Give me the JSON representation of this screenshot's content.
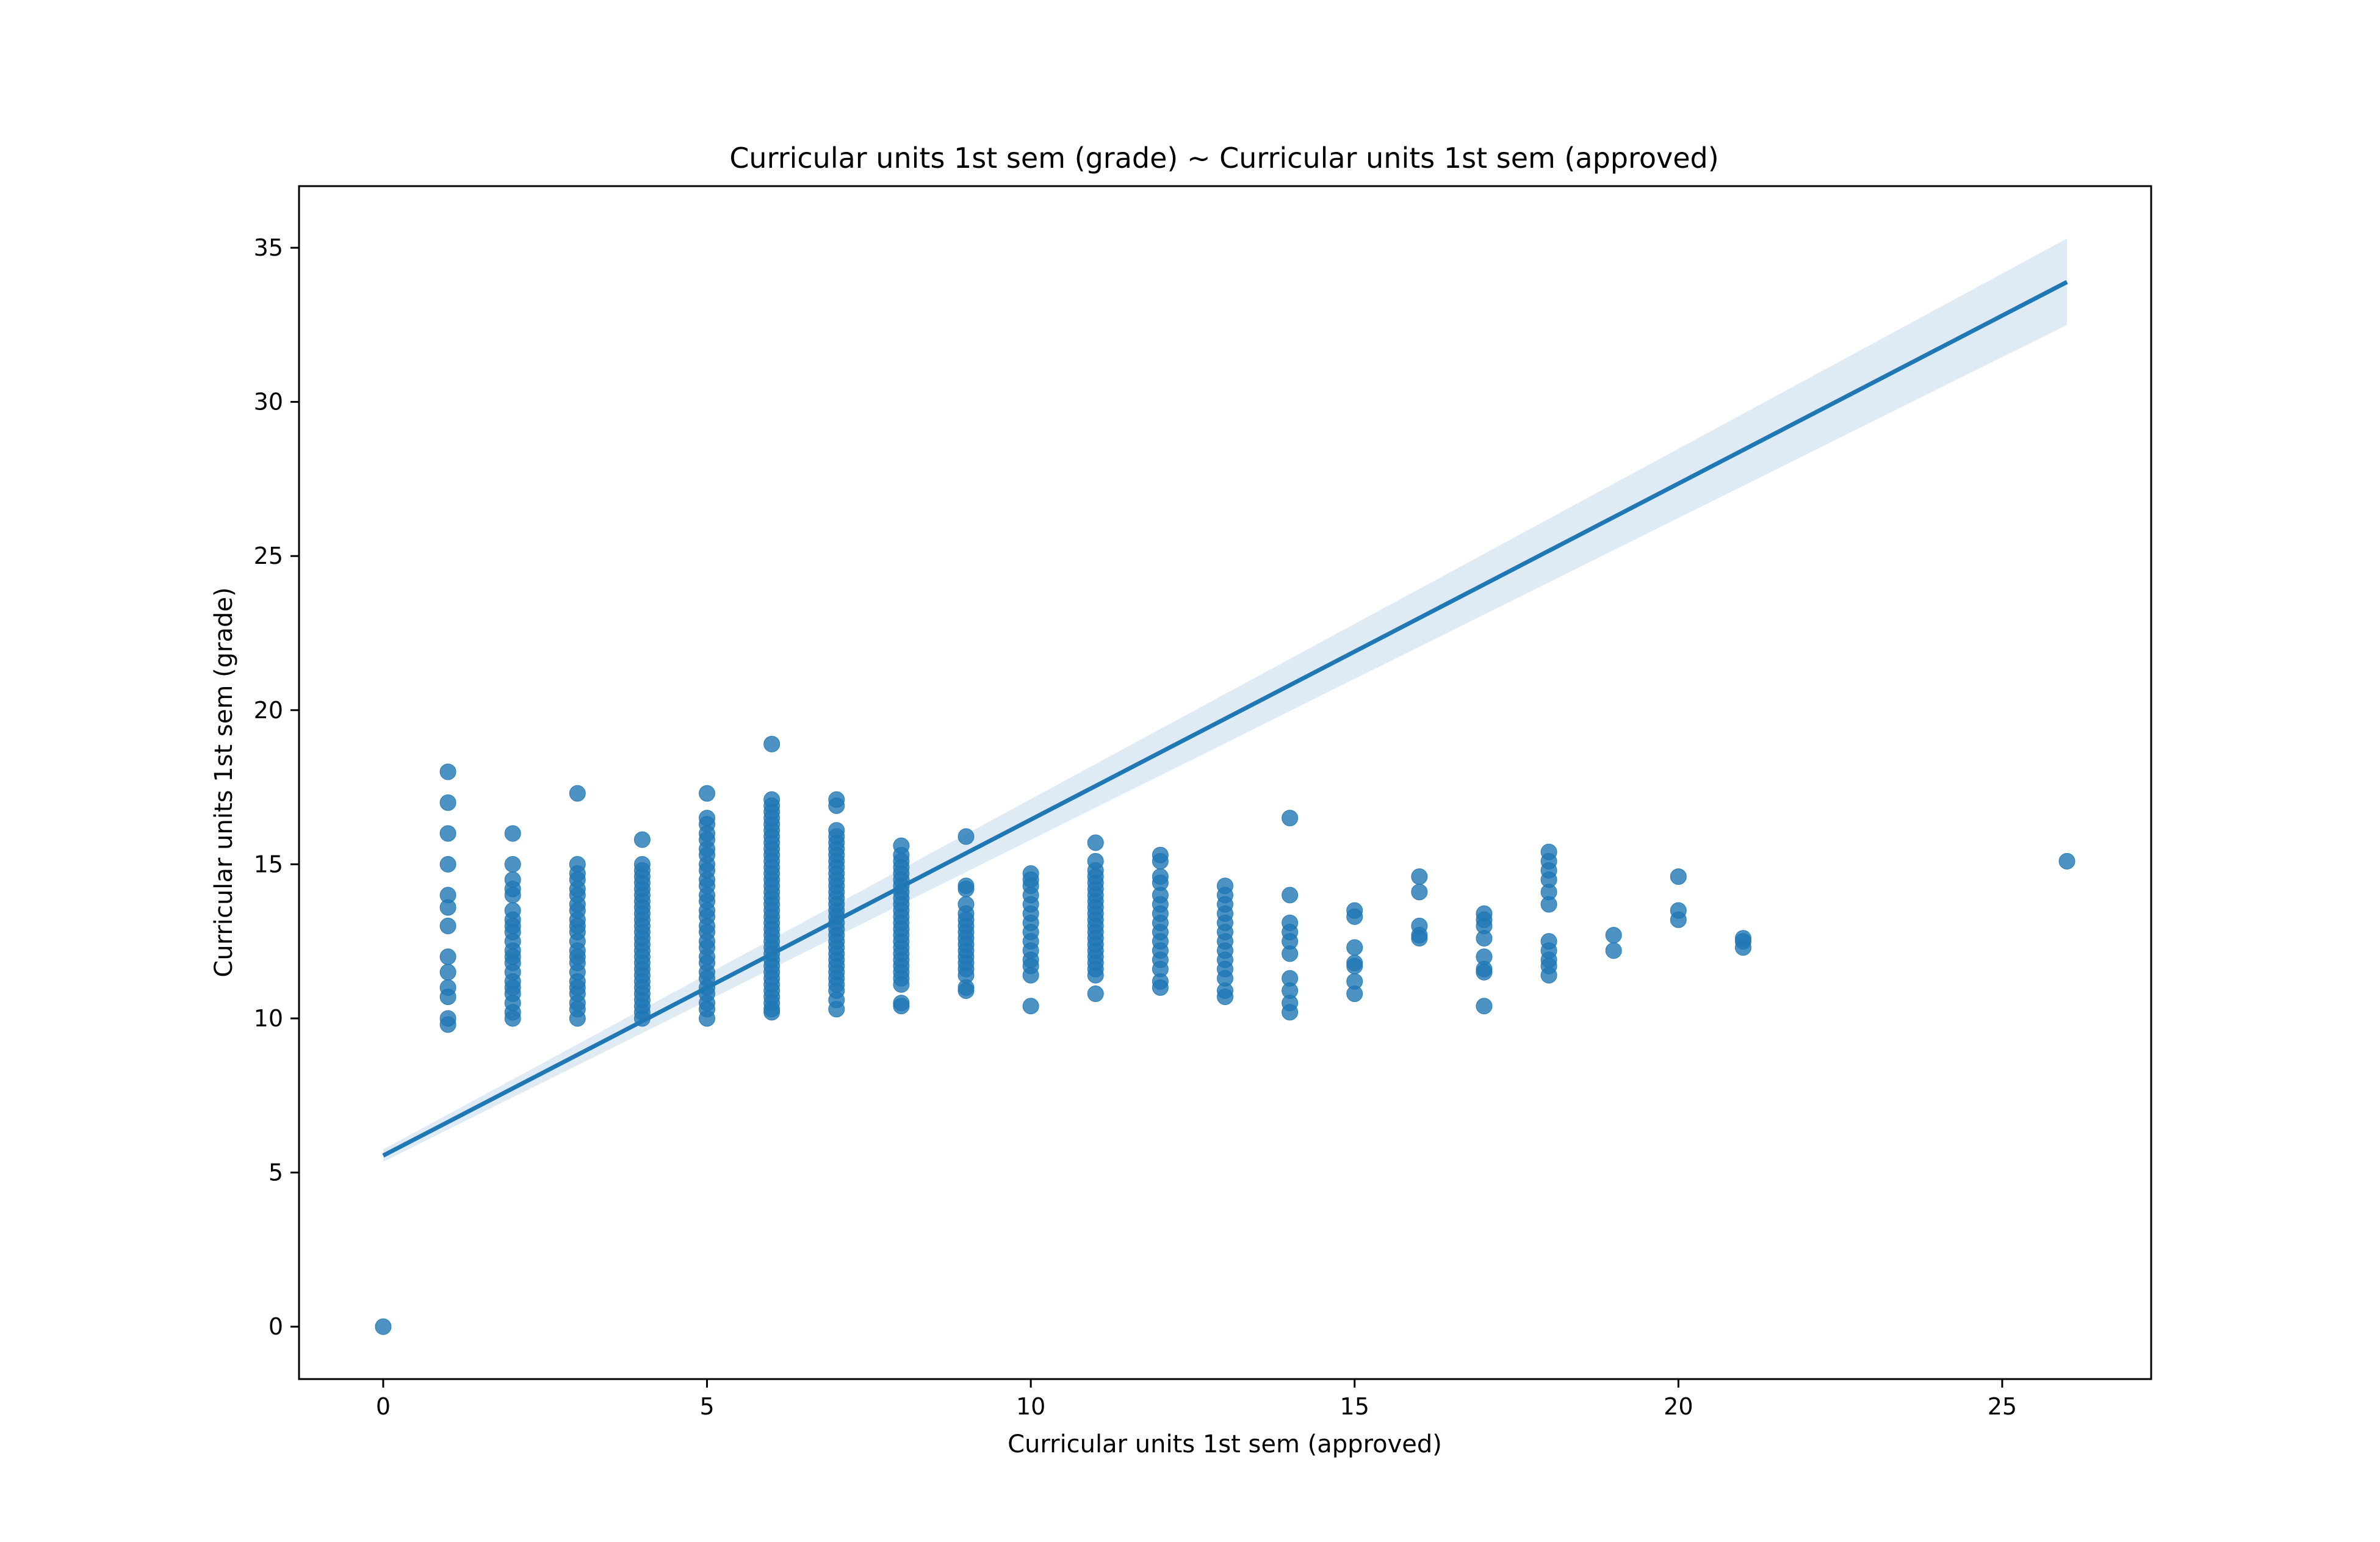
{
  "chart_data": {
    "type": "scatter",
    "title": "Curricular units 1st sem (grade) ~ Curricular units 1st sem (approved)",
    "xlabel": "Curricular units 1st sem (approved)",
    "ylabel": "Curricular units 1st sem (grade)",
    "xlim": [
      -1.3,
      27.3
    ],
    "ylim": [
      -1.7,
      37.0
    ],
    "xticks": [
      0,
      5,
      10,
      15,
      20,
      25
    ],
    "yticks": [
      0,
      5,
      10,
      15,
      20,
      25,
      30,
      35
    ],
    "grid": false,
    "legend": "none",
    "colors": {
      "points": "#1f77b4",
      "line": "#1f77b4",
      "band": "#1f77b4"
    },
    "regression": {
      "intercept": 5.55,
      "slope": 1.09,
      "x_range": [
        0,
        26
      ],
      "ci_at_start": [
        5.35,
        5.75
      ],
      "ci_at_end": [
        32.5,
        35.3
      ]
    },
    "points": [
      {
        "x": 0,
        "y": [
          0.0
        ]
      },
      {
        "x": 1,
        "y": [
          18.0,
          17.0,
          16.0,
          15.0,
          14.0,
          13.6,
          13.0,
          12.0,
          11.5,
          11.0,
          10.7,
          10.0,
          9.8
        ]
      },
      {
        "x": 2,
        "y": [
          16.0,
          15.0,
          14.5,
          14.2,
          14.0,
          13.5,
          13.2,
          13.0,
          12.8,
          12.5,
          12.2,
          12.0,
          11.8,
          11.5,
          11.2,
          11.0,
          10.8,
          10.5,
          10.2,
          10.0
        ]
      },
      {
        "x": 3,
        "y": [
          17.3,
          15.0,
          14.7,
          14.5,
          14.2,
          14.0,
          13.7,
          13.5,
          13.2,
          13.0,
          12.8,
          12.5,
          12.2,
          12.0,
          11.8,
          11.5,
          11.2,
          11.0,
          10.8,
          10.5,
          10.3,
          10.0
        ]
      },
      {
        "x": 4,
        "y": [
          15.8,
          15.0,
          14.8,
          14.6,
          14.4,
          14.2,
          14.0,
          13.8,
          13.6,
          13.4,
          13.2,
          13.0,
          12.8,
          12.6,
          12.4,
          12.2,
          12.0,
          11.8,
          11.6,
          11.4,
          11.2,
          11.0,
          10.8,
          10.6,
          10.4,
          10.2,
          10.0
        ]
      },
      {
        "x": 5,
        "y": [
          17.3,
          16.5,
          16.3,
          16.0,
          15.8,
          15.5,
          15.3,
          15.0,
          14.8,
          14.5,
          14.3,
          14.0,
          13.8,
          13.5,
          13.3,
          13.0,
          12.8,
          12.5,
          12.3,
          12.0,
          11.8,
          11.5,
          11.3,
          11.0,
          10.8,
          10.5,
          10.3,
          10.0
        ]
      },
      {
        "x": 6,
        "y": [
          18.9,
          17.1,
          16.9,
          16.7,
          16.5,
          16.3,
          16.1,
          15.9,
          15.7,
          15.5,
          15.3,
          15.1,
          14.9,
          14.7,
          14.5,
          14.3,
          14.1,
          13.9,
          13.7,
          13.5,
          13.3,
          13.1,
          12.9,
          12.7,
          12.5,
          12.3,
          12.1,
          11.9,
          11.7,
          11.5,
          11.3,
          11.1,
          10.9,
          10.7,
          10.5,
          10.3,
          10.2
        ]
      },
      {
        "x": 7,
        "y": [
          17.1,
          16.9,
          16.1,
          15.9,
          15.7,
          15.5,
          15.3,
          15.1,
          14.9,
          14.7,
          14.5,
          14.3,
          14.1,
          13.9,
          13.7,
          13.5,
          13.3,
          13.1,
          12.9,
          12.7,
          12.5,
          12.3,
          12.1,
          11.9,
          11.7,
          11.5,
          11.3,
          11.1,
          10.9,
          10.6,
          10.3
        ]
      },
      {
        "x": 8,
        "y": [
          15.6,
          15.3,
          15.1,
          14.9,
          14.7,
          14.5,
          14.3,
          14.1,
          13.9,
          13.7,
          13.5,
          13.3,
          13.1,
          12.9,
          12.7,
          12.5,
          12.3,
          12.1,
          11.9,
          11.7,
          11.5,
          11.3,
          11.1,
          10.5,
          10.4
        ]
      },
      {
        "x": 9,
        "y": [
          15.9,
          14.3,
          14.2,
          13.7,
          13.4,
          13.2,
          13.0,
          12.8,
          12.6,
          12.4,
          12.2,
          12.0,
          11.8,
          11.6,
          11.4,
          11.0,
          10.9
        ]
      },
      {
        "x": 10,
        "y": [
          14.7,
          14.5,
          14.3,
          14.0,
          13.7,
          13.4,
          13.1,
          12.8,
          12.5,
          12.2,
          11.9,
          11.7,
          11.4,
          10.4
        ]
      },
      {
        "x": 11,
        "y": [
          15.7,
          15.1,
          14.8,
          14.6,
          14.4,
          14.2,
          14.0,
          13.8,
          13.6,
          13.4,
          13.2,
          13.0,
          12.8,
          12.6,
          12.4,
          12.2,
          12.0,
          11.8,
          11.6,
          11.4,
          10.8
        ]
      },
      {
        "x": 12,
        "y": [
          15.3,
          15.1,
          14.6,
          14.4,
          14.0,
          13.7,
          13.4,
          13.1,
          12.8,
          12.5,
          12.2,
          11.9,
          11.6,
          11.2,
          11.0
        ]
      },
      {
        "x": 13,
        "y": [
          14.3,
          14.0,
          13.7,
          13.4,
          13.1,
          12.8,
          12.5,
          12.2,
          11.9,
          11.6,
          11.3,
          10.9,
          10.7
        ]
      },
      {
        "x": 14,
        "y": [
          16.5,
          14.0,
          13.1,
          12.8,
          12.5,
          12.1,
          11.3,
          10.9,
          10.5,
          10.2
        ]
      },
      {
        "x": 15,
        "y": [
          13.5,
          13.3,
          12.3,
          11.8,
          11.7,
          11.2,
          10.8
        ]
      },
      {
        "x": 16,
        "y": [
          14.6,
          14.1,
          13.0,
          12.7,
          12.6
        ]
      },
      {
        "x": 17,
        "y": [
          13.4,
          13.2,
          13.0,
          12.6,
          12.0,
          11.6,
          11.5,
          10.4
        ]
      },
      {
        "x": 18,
        "y": [
          15.4,
          15.1,
          14.8,
          14.5,
          14.1,
          13.7,
          12.5,
          12.2,
          11.9,
          11.7,
          11.4
        ]
      },
      {
        "x": 19,
        "y": [
          12.7,
          12.2
        ]
      },
      {
        "x": 20,
        "y": [
          14.6,
          13.5,
          13.2
        ]
      },
      {
        "x": 21,
        "y": [
          12.6,
          12.5,
          12.3
        ]
      },
      {
        "x": 26,
        "y": [
          15.1
        ]
      }
    ]
  }
}
